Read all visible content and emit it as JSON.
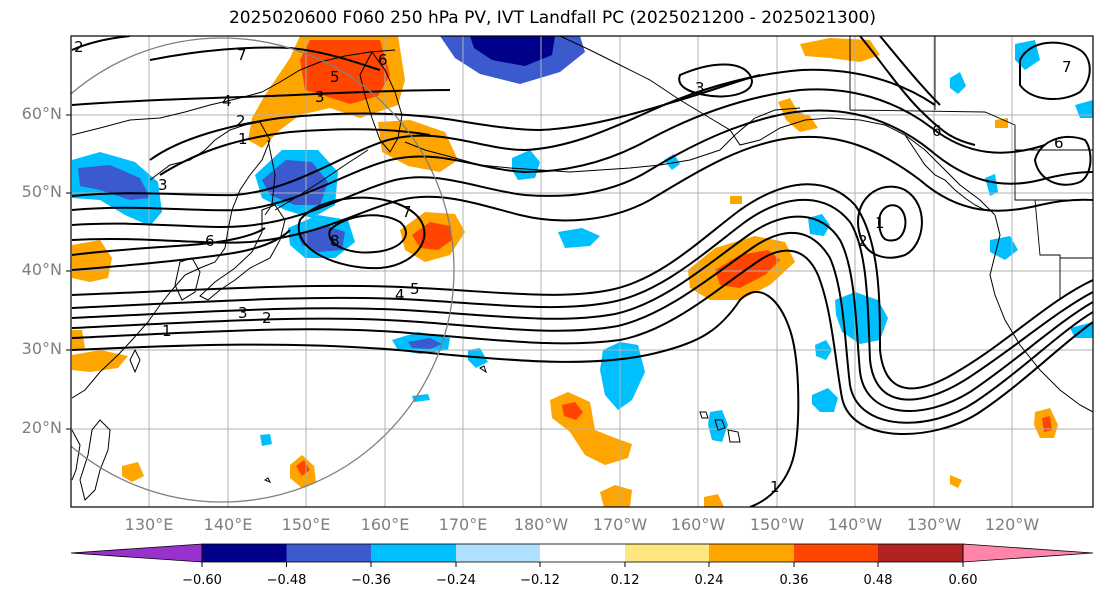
{
  "title": "2025020600 F060 250 hPa PV, IVT Landfall PC (2025021200 - 2025021300)",
  "lat_labels": [
    "60°N",
    "50°N",
    "40°N",
    "30°N",
    "20°N"
  ],
  "lon_labels": [
    "130°E",
    "140°E",
    "150°E",
    "160°E",
    "170°E",
    "180°W",
    "170°W",
    "160°W",
    "150°W",
    "140°W",
    "130°W",
    "120°W"
  ],
  "colorbar": {
    "tick_labels": [
      "−0.60",
      "−0.48",
      "−0.36",
      "−0.24",
      "−0.12",
      "0.12",
      "0.24",
      "0.36",
      "0.48",
      "0.60"
    ],
    "colors": [
      "#9932cc",
      "#00008b",
      "#3a5acd",
      "#00bfff",
      "#b0e0ff",
      "#ffffff",
      "#ffe680",
      "#ffa500",
      "#ff4500",
      "#b22222",
      "#ff85aa"
    ]
  },
  "contour_labels": [
    "1",
    "2",
    "3",
    "4",
    "5",
    "6",
    "7",
    "8"
  ],
  "colors": {
    "grid": "#b0b0b0",
    "coast": "#000000",
    "contour": "#000000",
    "circle": "#808080"
  }
}
